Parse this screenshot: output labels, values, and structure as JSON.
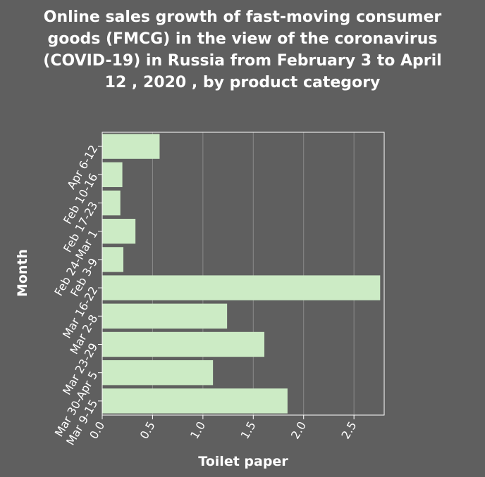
{
  "chart_data": {
    "type": "bar",
    "orientation": "horizontal",
    "title_lines": [
      "Online sales growth of fast-moving consumer",
      "goods (FMCG) in the view of the coronavirus",
      "(COVID-19) in Russia from February 3 to April",
      "12 , 2020 , by product category"
    ],
    "xlabel": "Toilet paper",
    "ylabel": "Month",
    "categories": [
      "Apr 6-12",
      "Feb 10-16",
      "Feb 17-23",
      "Feb 24-Mar 1",
      "Feb 3-9",
      "Mar 16-22",
      "Mar 2-8",
      "Mar 23-29",
      "Mar 30-Apr 5",
      "Mar 9-15"
    ],
    "values": [
      0.57,
      0.2,
      0.18,
      0.33,
      0.21,
      2.76,
      1.24,
      1.61,
      1.1,
      1.84
    ],
    "xlim": [
      0,
      2.8
    ],
    "xticks": [
      "0.0",
      "0.5",
      "1.0",
      "1.5",
      "2.0",
      "2.5"
    ],
    "grid": true,
    "colors": {
      "background": "#5f5f5f",
      "bar": "#ccebc5",
      "text": "#ffffff",
      "grid": "#8a8a8a",
      "frame": "#ffffff"
    }
  }
}
